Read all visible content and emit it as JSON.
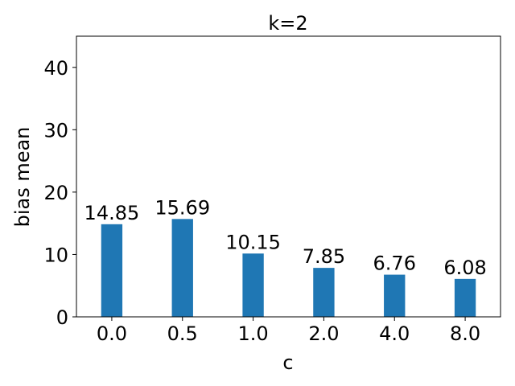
{
  "chart_data": {
    "type": "bar",
    "title": "k=2",
    "xlabel": "c",
    "ylabel": "bias mean",
    "categories": [
      "0.0",
      "0.5",
      "1.0",
      "2.0",
      "4.0",
      "8.0"
    ],
    "values": [
      14.85,
      15.69,
      10.15,
      7.85,
      6.76,
      6.08
    ],
    "data_labels": [
      "14.85",
      "15.69",
      "10.15",
      "7.85",
      "6.76",
      "6.08"
    ],
    "ylim": [
      0,
      45
    ],
    "yticks": [
      0,
      10,
      20,
      30,
      40
    ],
    "grid": false,
    "legend": "none",
    "bar_color": "#1f77b4"
  }
}
